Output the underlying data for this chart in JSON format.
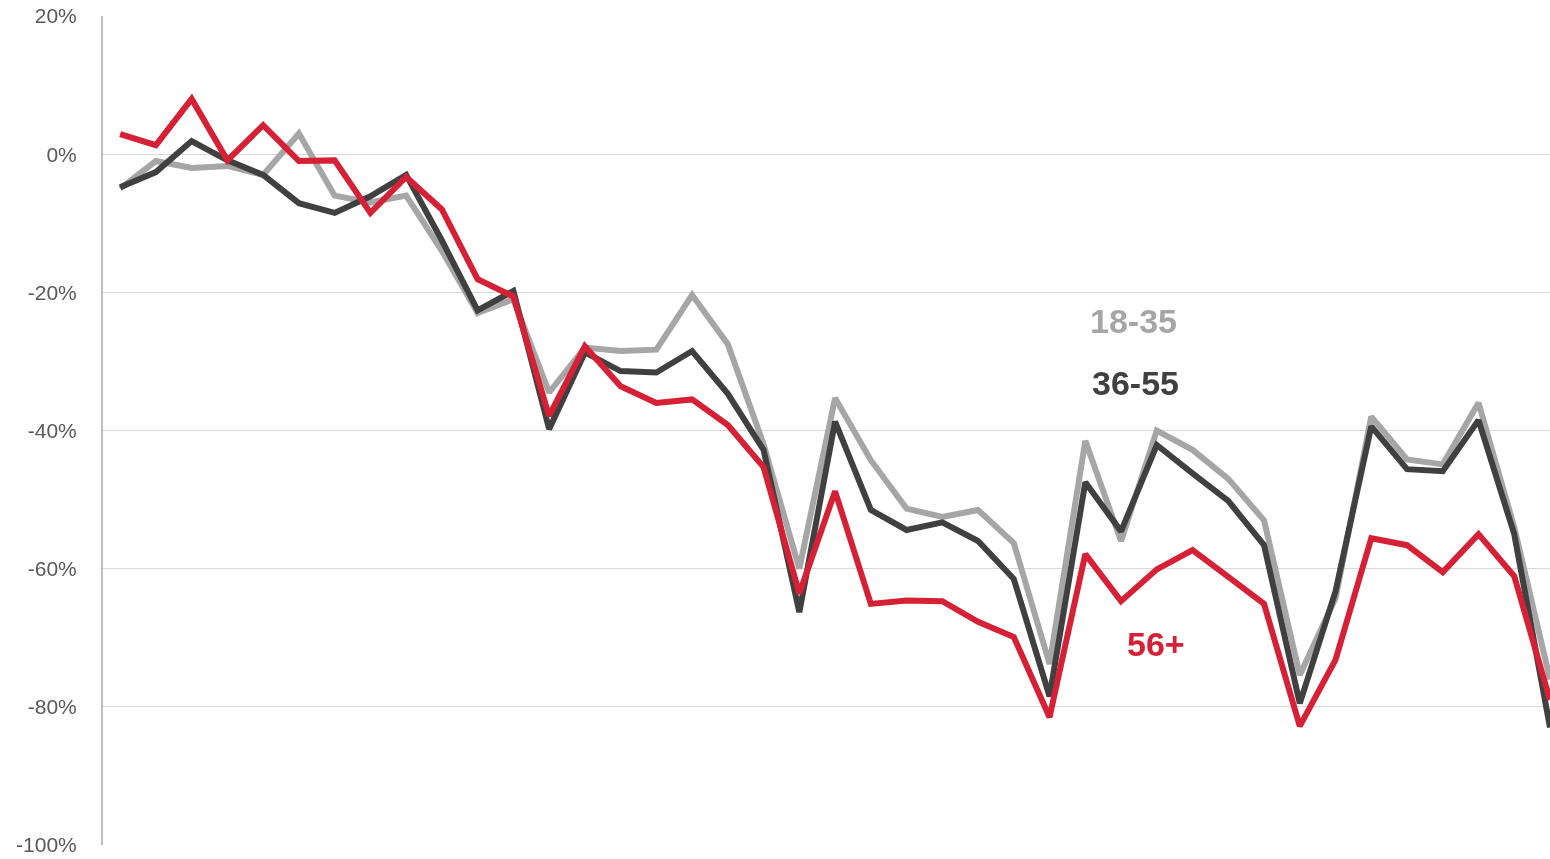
{
  "chart_data": {
    "type": "line",
    "categories": [
      null,
      null,
      null,
      null,
      null,
      null,
      null,
      null,
      null,
      null,
      null,
      null,
      null,
      null,
      null,
      null,
      null,
      null,
      null,
      null,
      null,
      null,
      null,
      null,
      null,
      null,
      null,
      null,
      null,
      null,
      null,
      null,
      null,
      null,
      null,
      null,
      null,
      null,
      null,
      null,
      null
    ],
    "series": [
      {
        "name": "18-35",
        "color": "#a6a6a6",
        "values": [
          -5,
          -1,
          -2,
          -1.7,
          -3,
          3,
          -6,
          -7,
          -6,
          -14,
          -23,
          -21,
          -34.5,
          -28,
          -28.5,
          -28.3,
          -20.4,
          -27.5,
          -42,
          -60,
          -35.3,
          -44.3,
          -51.3,
          -52.5,
          -51.5,
          -56.3,
          -73.8,
          -41.5,
          -56,
          -40,
          -42.8,
          -47,
          -53,
          -75.4,
          -64.3,
          -38,
          -44.2,
          -44.9,
          -36,
          -54,
          -76
        ]
      },
      {
        "name": "36-55",
        "color": "#404040",
        "values": [
          -4.8,
          -2.6,
          1.9,
          -0.9,
          -3,
          -7.1,
          -8.5,
          -6.1,
          -3,
          -12.5,
          -22.6,
          -19.8,
          -39.8,
          -28.7,
          -31.4,
          -31.6,
          -28.5,
          -34.7,
          -42.8,
          -66.3,
          -38.7,
          -51.5,
          -54.4,
          -53.3,
          -56,
          -61.5,
          -78.5,
          -47.5,
          -54.6,
          -42.1,
          -46.2,
          -50.2,
          -56.6,
          -79.5,
          -63.3,
          -39.4,
          -45.6,
          -45.9,
          -38.5,
          -55,
          -83
        ]
      },
      {
        "name": "56+",
        "color": "#d62035",
        "values": [
          2.9,
          1.3,
          8,
          -0.9,
          4.2,
          -1,
          -0.9,
          -8.5,
          -3.3,
          -8,
          -18.1,
          -20.6,
          -37.9,
          -27.8,
          -33.6,
          -36,
          -35.5,
          -39.2,
          -45.3,
          -63.6,
          -48.8,
          -65.1,
          -64.6,
          -64.7,
          -67.7,
          -69.9,
          -81.5,
          -57.9,
          -64.7,
          -60.1,
          -57.3,
          -61.2,
          -65.1,
          -82.8,
          -73.2,
          -55.6,
          -56.6,
          -60.5,
          -55,
          -61.1,
          -79
        ]
      }
    ],
    "ylim": [
      -100,
      20
    ],
    "yticks": [
      {
        "value": 20,
        "label": "20%"
      },
      {
        "value": 0,
        "label": "0%"
      },
      {
        "value": -20,
        "label": "-20%"
      },
      {
        "value": -40,
        "label": "-40%"
      },
      {
        "value": -60,
        "label": "-60%"
      },
      {
        "value": -80,
        "label": "-80%"
      },
      {
        "value": -100,
        "label": "-100%"
      }
    ],
    "grid": "y",
    "legend": false,
    "tick_labels": "y",
    "marker": "none",
    "line_style": "solid"
  }
}
